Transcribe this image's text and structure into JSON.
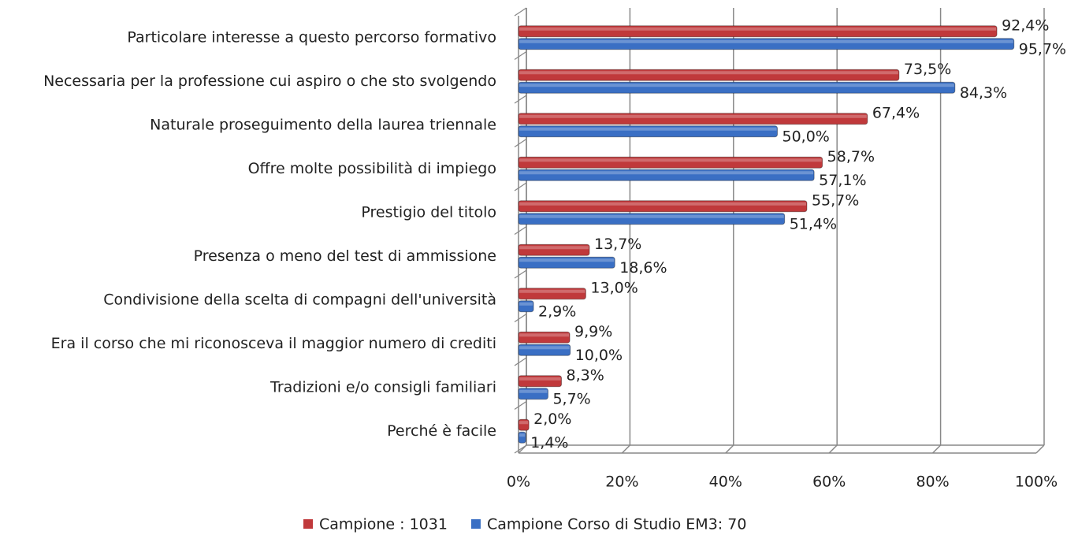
{
  "chart_data": {
    "type": "bar",
    "orientation": "horizontal",
    "categories": [
      "Particolare interesse a questo percorso formativo",
      "Necessaria per la professione cui aspiro o che sto svolgendo",
      "Naturale proseguimento della laurea triennale",
      "Offre molte possibilità di impiego",
      "Prestigio del titolo",
      "Presenza o meno del test di ammissione",
      "Condivisione della scelta di compagni dell'università",
      "Era il corso che mi riconosceva il maggior numero di crediti",
      "Tradizioni e/o consigli familiari",
      "Perché è facile"
    ],
    "series": [
      {
        "name": "Campione : 1031",
        "color": "#c0393b",
        "values": [
          92.4,
          73.5,
          67.4,
          58.7,
          55.7,
          13.7,
          13.0,
          9.9,
          8.3,
          2.0
        ],
        "value_labels": [
          "92,4%",
          "73,5%",
          "67,4%",
          "58,7%",
          "55,7%",
          "13,7%",
          "13,0%",
          "9,9%",
          "8,3%",
          "2,0%"
        ]
      },
      {
        "name": "Campione Corso di Studio EM3: 70",
        "color": "#3a6fc4",
        "values": [
          95.7,
          84.3,
          50.0,
          57.1,
          51.4,
          18.6,
          2.9,
          10.0,
          5.7,
          1.4
        ],
        "value_labels": [
          "95,7%",
          "84,3%",
          "50,0%",
          "57,1%",
          "51,4%",
          "18,6%",
          "2,9%",
          "10,0%",
          "5,7%",
          "1,4%"
        ]
      }
    ],
    "xlim": [
      0,
      100
    ],
    "xticks": [
      {
        "value": 0,
        "label": "0%"
      },
      {
        "value": 20,
        "label": "20%"
      },
      {
        "value": 40,
        "label": "40%"
      },
      {
        "value": 60,
        "label": "60%"
      },
      {
        "value": 80,
        "label": "80%"
      },
      {
        "value": 100,
        "label": "100%"
      }
    ],
    "grid": true,
    "legend": "bottom"
  }
}
